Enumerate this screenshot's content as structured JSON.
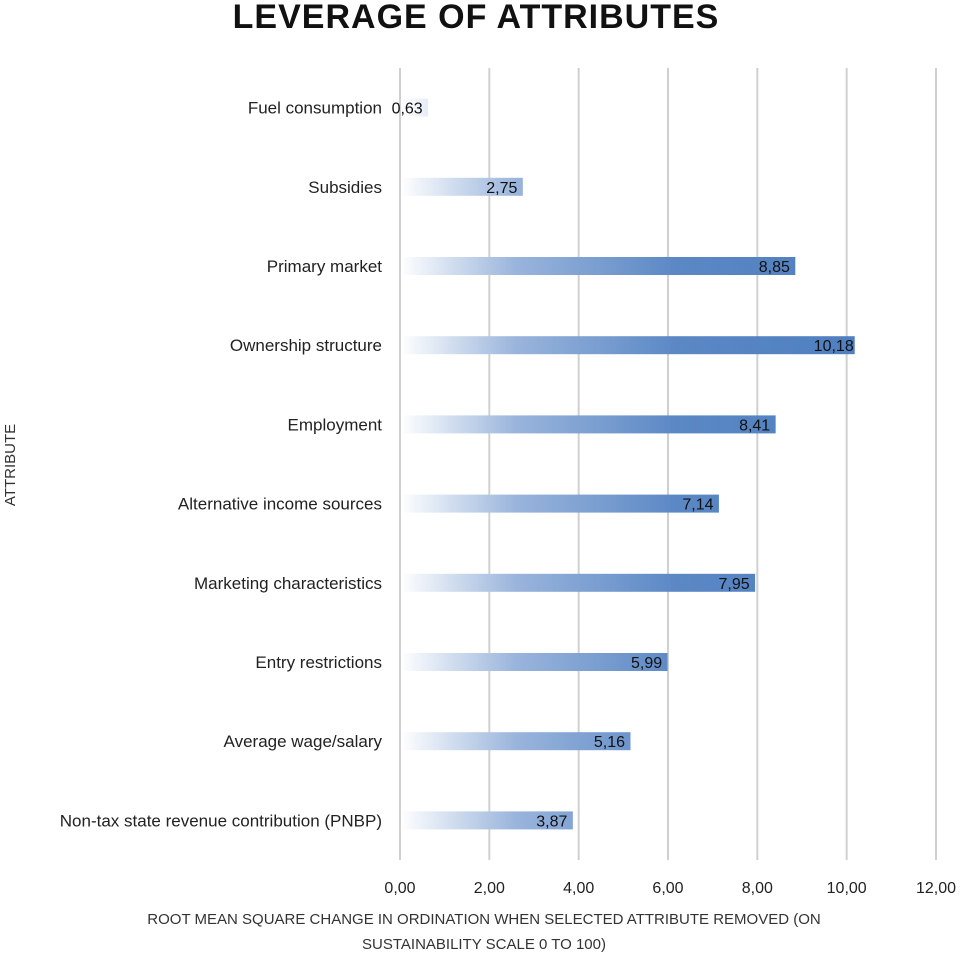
{
  "chart_data": {
    "type": "bar",
    "orientation": "horizontal",
    "title": "LEVERAGE OF ATTRIBUTES",
    "ylabel": "ATTRIBUTE",
    "xlabel_lines": [
      "ROOT MEAN SQUARE CHANGE IN ORDINATION WHEN SELECTED ATTRIBUTE REMOVED (ON",
      "SUSTAINABILITY SCALE 0 TO 100)"
    ],
    "categories": [
      "Fuel consumption",
      "Subsidies",
      "Primary market",
      "Ownership structure",
      "Employment",
      "Alternative income sources",
      "Marketing characteristics",
      "Entry restrictions",
      "Average wage/salary",
      "Non-tax state revenue contribution (PNBP)"
    ],
    "values": [
      0.63,
      2.75,
      8.85,
      10.18,
      8.41,
      7.14,
      7.95,
      5.99,
      5.16,
      3.87
    ],
    "value_labels": [
      "0,63",
      "2,75",
      "8,85",
      "10,18",
      "8,41",
      "7,14",
      "7,95",
      "5,99",
      "5,16",
      "3,87"
    ],
    "xlim": [
      0,
      12
    ],
    "xticks": [
      0,
      2,
      4,
      6,
      8,
      10,
      12
    ],
    "xtick_labels": [
      "0,00",
      "2,00",
      "4,00",
      "6,00",
      "8,00",
      "10,00",
      "12,00"
    ],
    "grid": true,
    "bar_color": "#5b88c5",
    "bar_fade_color": "#ffffff"
  }
}
